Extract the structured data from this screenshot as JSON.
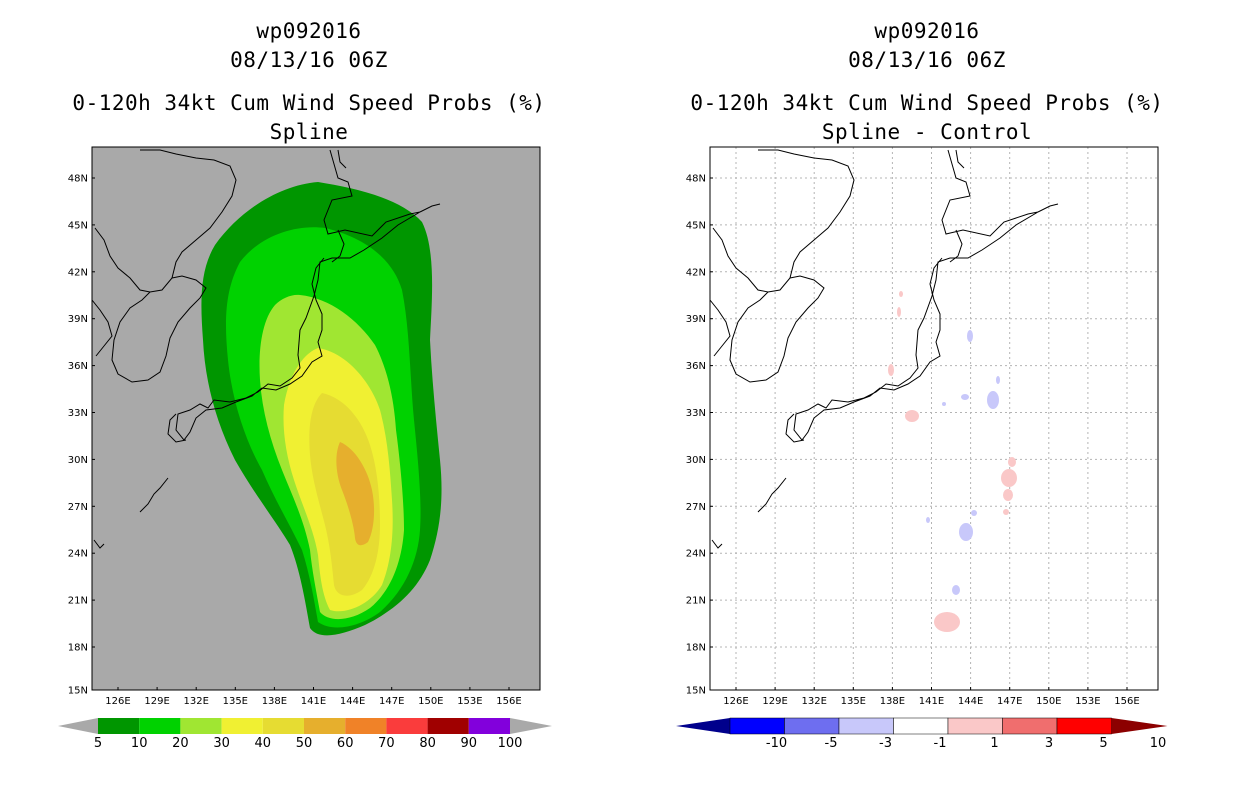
{
  "left": {
    "storm_id": "wp092016",
    "datetime": "08/13/16 06Z",
    "title": "0-120h 34kt Cum Wind Speed Probs (%)",
    "subtitle": "Spline",
    "lat_labels": [
      "48N",
      "45N",
      "42N",
      "39N",
      "36N",
      "33N",
      "30N",
      "27N",
      "24N",
      "21N",
      "18N",
      "15N"
    ],
    "lon_labels": [
      "126E",
      "129E",
      "132E",
      "135E",
      "138E",
      "141E",
      "144E",
      "147E",
      "150E",
      "153E",
      "156E"
    ],
    "colorbar": {
      "labels": [
        "5",
        "10",
        "20",
        "30",
        "40",
        "50",
        "60",
        "70",
        "80",
        "90",
        "100"
      ],
      "colors": [
        "#009600",
        "#00d200",
        "#a0e632",
        "#f0f032",
        "#e6dc32",
        "#e6af2d",
        "#f08228",
        "#fa3c3c",
        "#a00000",
        "#8200dc"
      ]
    },
    "background_color": "#a9a9a9"
  },
  "right": {
    "storm_id": "wp092016",
    "datetime": "08/13/16 06Z",
    "title": "0-120h 34kt Cum Wind Speed Probs (%)",
    "subtitle": "Spline - Control",
    "lat_labels": [
      "48N",
      "45N",
      "42N",
      "39N",
      "36N",
      "33N",
      "30N",
      "27N",
      "24N",
      "21N",
      "18N",
      "15N"
    ],
    "lon_labels": [
      "126E",
      "129E",
      "132E",
      "135E",
      "138E",
      "141E",
      "144E",
      "147E",
      "150E",
      "153E",
      "156E"
    ],
    "colorbar": {
      "labels": [
        "-10",
        "-5",
        "-3",
        "-1",
        "1",
        "3",
        "5",
        "10"
      ],
      "colors": [
        "#00008c",
        "#0000ff",
        "#6e6ef0",
        "#c8c8fa",
        "#ffffff",
        "#fac8c8",
        "#f06e6e",
        "#ff0000",
        "#8c0000"
      ]
    }
  }
}
